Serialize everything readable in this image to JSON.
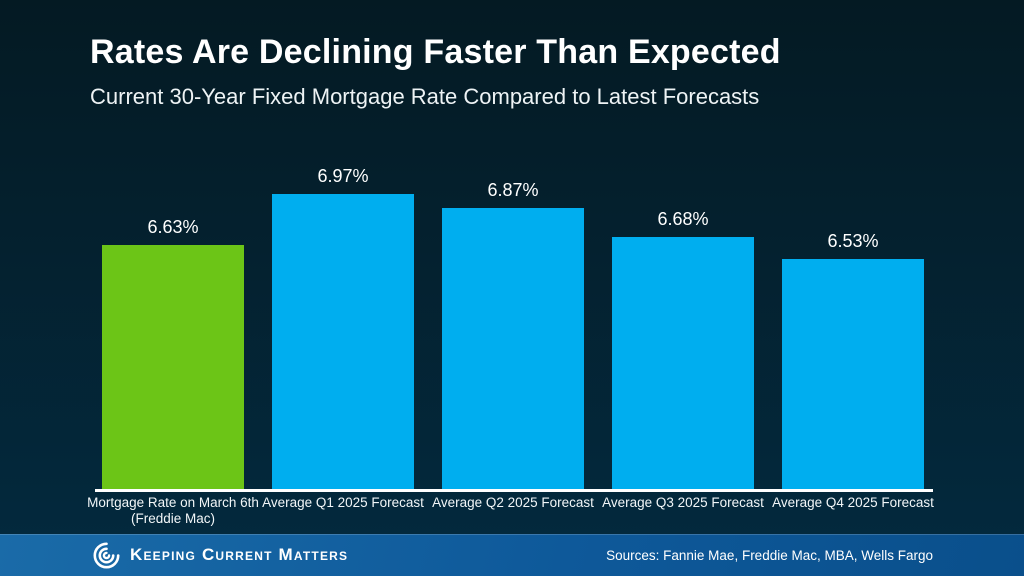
{
  "slide": {
    "title": "Rates Are Declining Faster Than Expected",
    "subtitle": "Current 30-Year Fixed Mortgage Rate Compared to Latest Forecasts"
  },
  "chart_data": {
    "type": "bar",
    "title": "Rates Are Declining Faster Than Expected",
    "subtitle": "Current 30-Year Fixed Mortgage Rate Compared to Latest Forecasts",
    "categories": [
      "Mortgage Rate on March 6th (Freddie Mac)",
      "Average Q1 2025 Forecast",
      "Average Q2 2025 Forecast",
      "Average Q3 2025 Forecast",
      "Average Q4 2025 Forecast"
    ],
    "category_lines": [
      [
        "Mortgage Rate on March 6th",
        "(Freddie Mac)"
      ],
      [
        "Average Q1 2025 Forecast"
      ],
      [
        "Average Q2 2025 Forecast"
      ],
      [
        "Average Q3 2025 Forecast"
      ],
      [
        "Average Q4 2025 Forecast"
      ]
    ],
    "values": [
      6.63,
      6.97,
      6.87,
      6.68,
      6.53
    ],
    "labels": [
      "6.63%",
      "6.97%",
      "6.87%",
      "6.68%",
      "6.53%"
    ],
    "bar_colors": [
      "#6cc517",
      "#00aeef",
      "#00aeef",
      "#00aeef",
      "#00aeef"
    ],
    "ylim": [
      5.0,
      7.2
    ],
    "grid": false,
    "legend": false,
    "xlabel": "",
    "ylabel": ""
  },
  "footer": {
    "brand": "Keeping Current Matters",
    "sources": "Sources: Fannie Mae, Freddie Mac, MBA, Wells Fargo"
  },
  "colors": {
    "background_top": "#041a23",
    "background_bottom": "#032a3f",
    "bar_green": "#6cc517",
    "bar_blue": "#00aeef",
    "axis_line": "#ffffff",
    "footer_blue_light": "#1a6ba8",
    "footer_blue_dark": "#0a4f8b",
    "text": "#ffffff"
  }
}
